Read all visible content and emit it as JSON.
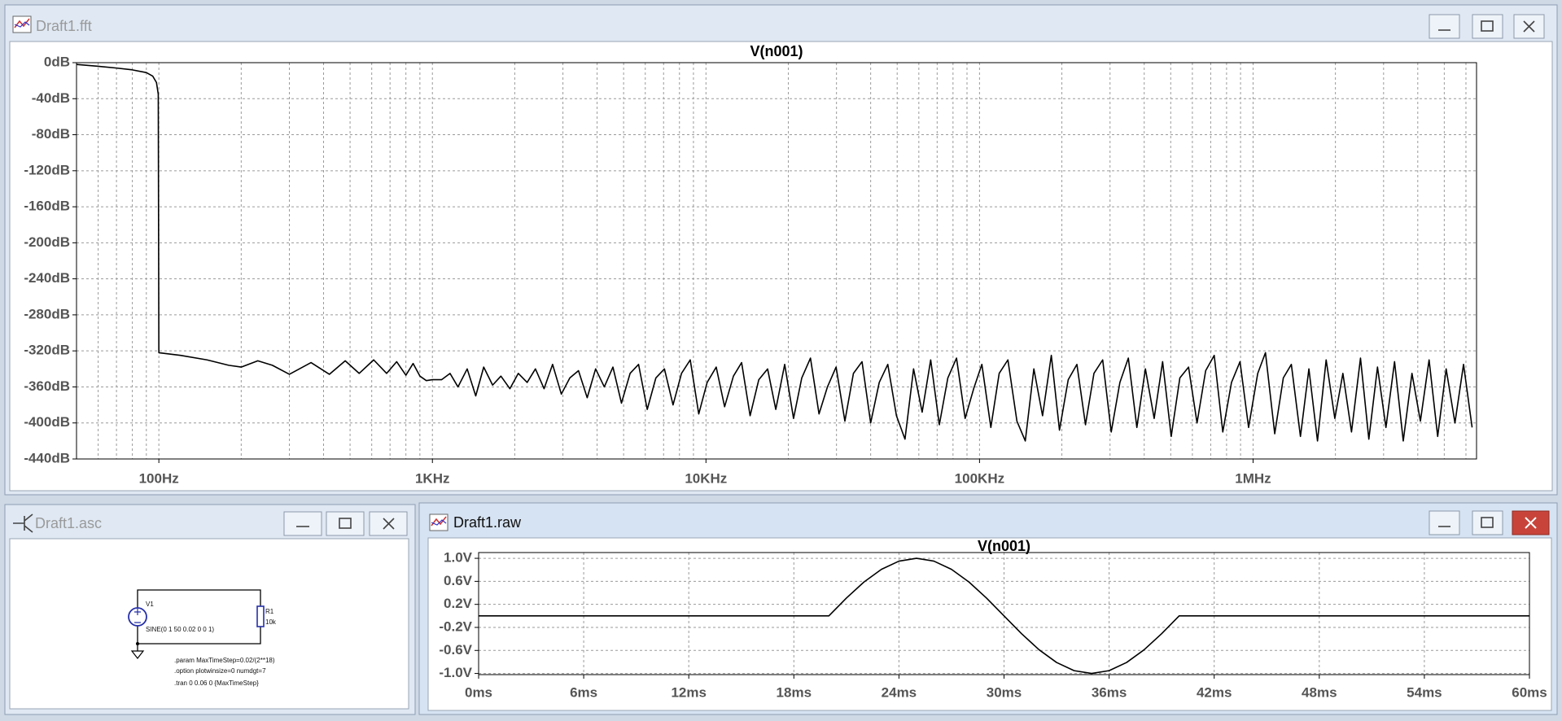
{
  "windows": [
    {
      "title": "Draft1.fft"
    },
    {
      "title": "Draft1.asc",
      "labels": {
        "source": "V1",
        "source_value": "SINE(0 1 50 0.02 0 0 1)",
        "resistor": "R1",
        "resistor_value": "10k"
      },
      "directives": [
        ".param MaxTimeStep=0.02/(2**18)",
        ".option plotwinsize=0 numdgt=7",
        ".tran 0 0.06 0 {MaxTimeStep}"
      ]
    },
    {
      "title": "Draft1.raw"
    }
  ],
  "chart_data": [
    {
      "type": "line",
      "title": "V(n001)",
      "xscale": "log",
      "grid": true,
      "minor_grid": true,
      "xlim": [
        50,
        6560000
      ],
      "ylim": [
        -440,
        0
      ],
      "xticks": [
        {
          "value": 100,
          "label": "100Hz"
        },
        {
          "value": 1000,
          "label": "1KHz"
        },
        {
          "value": 10000,
          "label": "10KHz"
        },
        {
          "value": 100000,
          "label": "100KHz"
        },
        {
          "value": 1000000,
          "label": "1MHz"
        }
      ],
      "yticks": [
        {
          "value": 0,
          "label": "0dB"
        },
        {
          "value": -40,
          "label": "-40dB"
        },
        {
          "value": -80,
          "label": "-80dB"
        },
        {
          "value": -120,
          "label": "-120dB"
        },
        {
          "value": -160,
          "label": "-160dB"
        },
        {
          "value": -200,
          "label": "-200dB"
        },
        {
          "value": -240,
          "label": "-240dB"
        },
        {
          "value": -280,
          "label": "-280dB"
        },
        {
          "value": -320,
          "label": "-320dB"
        },
        {
          "value": -360,
          "label": "-360dB"
        },
        {
          "value": -400,
          "label": "-400dB"
        },
        {
          "value": -440,
          "label": "-440dB"
        }
      ],
      "x": [
        50,
        60,
        70,
        80,
        90,
        95,
        98,
        99.5,
        100,
        120,
        150,
        180,
        200,
        230,
        260,
        300,
        360,
        420,
        480,
        540,
        610,
        680,
        740,
        800,
        850,
        900,
        950,
        1000,
        1080,
        1160,
        1240,
        1340,
        1440,
        1540,
        1660,
        1780,
        1920,
        2060,
        2220,
        2380,
        2560,
        2750,
        2960,
        3180,
        3420,
        3680,
        3950,
        4250,
        4570,
        4910,
        5280,
        5670,
        6100,
        6560,
        7050,
        7580,
        8140,
        8760,
        9410,
        10100,
        10900,
        11700,
        12600,
        13500,
        14500,
        15600,
        16800,
        18000,
        19400,
        20900,
        22400,
        24100,
        25900,
        27800,
        29900,
        32200,
        34600,
        37200,
        40000,
        43000,
        46200,
        49700,
        53400,
        57400,
        61700,
        66300,
        71300,
        76600,
        82400,
        88600,
        95200,
        102000,
        110000,
        118000,
        127000,
        137000,
        147000,
        158000,
        170000,
        183000,
        196000,
        211000,
        227000,
        244000,
        262000,
        282000,
        303000,
        326000,
        350000,
        376000,
        404000,
        435000,
        467000,
        502000,
        540000,
        581000,
        624000,
        671000,
        721000,
        775000,
        834000,
        896000,
        963000,
        1040000,
        1110000,
        1200000,
        1290000,
        1380000,
        1490000,
        1600000,
        1720000,
        1850000,
        1990000,
        2130000,
        2290000,
        2470000,
        2650000,
        2850000,
        3060000,
        3290000,
        3540000,
        3810000,
        4090000,
        4400000,
        4730000,
        5080000,
        5470000,
        5880000,
        6320000
      ],
      "series": [
        {
          "color": "#000000",
          "values": [
            -2,
            -4,
            -6,
            -8,
            -11,
            -15,
            -22,
            -35,
            -322,
            -325,
            -330,
            -336,
            -338,
            -331,
            -336,
            -346,
            -333,
            -346,
            -331,
            -345,
            -330,
            -345,
            -332,
            -347,
            -334,
            -348,
            -353,
            -352,
            -352,
            -345,
            -360,
            -340,
            -370,
            -338,
            -358,
            -348,
            -362,
            -345,
            -355,
            -340,
            -362,
            -335,
            -368,
            -350,
            -342,
            -372,
            -340,
            -360,
            -338,
            -378,
            -345,
            -335,
            -385,
            -350,
            -340,
            -380,
            -345,
            -330,
            -390,
            -355,
            -338,
            -382,
            -348,
            -333,
            -392,
            -352,
            -340,
            -385,
            -335,
            -395,
            -350,
            -328,
            -390,
            -360,
            -338,
            -398,
            -345,
            -332,
            -400,
            -355,
            -335,
            -392,
            -418,
            -340,
            -388,
            -330,
            -402,
            -350,
            -328,
            -395,
            -362,
            -335,
            -405,
            -345,
            -330,
            -398,
            -420,
            -340,
            -392,
            -325,
            -408,
            -352,
            -335,
            -402,
            -345,
            -330,
            -410,
            -355,
            -328,
            -405,
            -340,
            -395,
            -332,
            -415,
            -350,
            -338,
            -400,
            -342,
            -325,
            -410,
            -355,
            -332,
            -405,
            -345,
            -322,
            -412,
            -350,
            -335,
            -415,
            -340,
            -420,
            -330,
            -395,
            -345,
            -410,
            -328,
            -418,
            -338,
            -405,
            -332,
            -420,
            -345,
            -398,
            -330,
            -415,
            -340,
            -400,
            -335,
            -405
          ]
        }
      ]
    },
    {
      "type": "line",
      "title": "V(n001)",
      "xscale": "linear",
      "grid": true,
      "minor_grid": false,
      "xlim": [
        0,
        60
      ],
      "ylim": [
        -1.02,
        1.1
      ],
      "xticks": [
        {
          "value": 0,
          "label": "0ms"
        },
        {
          "value": 6,
          "label": "6ms"
        },
        {
          "value": 12,
          "label": "12ms"
        },
        {
          "value": 18,
          "label": "18ms"
        },
        {
          "value": 24,
          "label": "24ms"
        },
        {
          "value": 30,
          "label": "30ms"
        },
        {
          "value": 36,
          "label": "36ms"
        },
        {
          "value": 42,
          "label": "42ms"
        },
        {
          "value": 48,
          "label": "48ms"
        },
        {
          "value": 54,
          "label": "54ms"
        },
        {
          "value": 60,
          "label": "60ms"
        }
      ],
      "yticks": [
        {
          "value": 1.0,
          "label": "1.0V"
        },
        {
          "value": 0.6,
          "label": "0.6V"
        },
        {
          "value": 0.2,
          "label": "0.2V"
        },
        {
          "value": -0.2,
          "label": "-0.2V"
        },
        {
          "value": -0.6,
          "label": "-0.6V"
        },
        {
          "value": -1.0,
          "label": "-1.0V"
        }
      ],
      "x": [
        0,
        20,
        21,
        22,
        23,
        24,
        25,
        26,
        27,
        28,
        29,
        30,
        31,
        32,
        33,
        34,
        35,
        36,
        37,
        38,
        39,
        40,
        60
      ],
      "series": [
        {
          "color": "#000000",
          "values": [
            0,
            0,
            0.309,
            0.588,
            0.809,
            0.951,
            1,
            0.951,
            0.809,
            0.588,
            0.309,
            0,
            -0.309,
            -0.588,
            -0.809,
            -0.951,
            -1,
            -0.951,
            -0.809,
            -0.588,
            -0.309,
            0,
            0
          ]
        }
      ]
    }
  ]
}
